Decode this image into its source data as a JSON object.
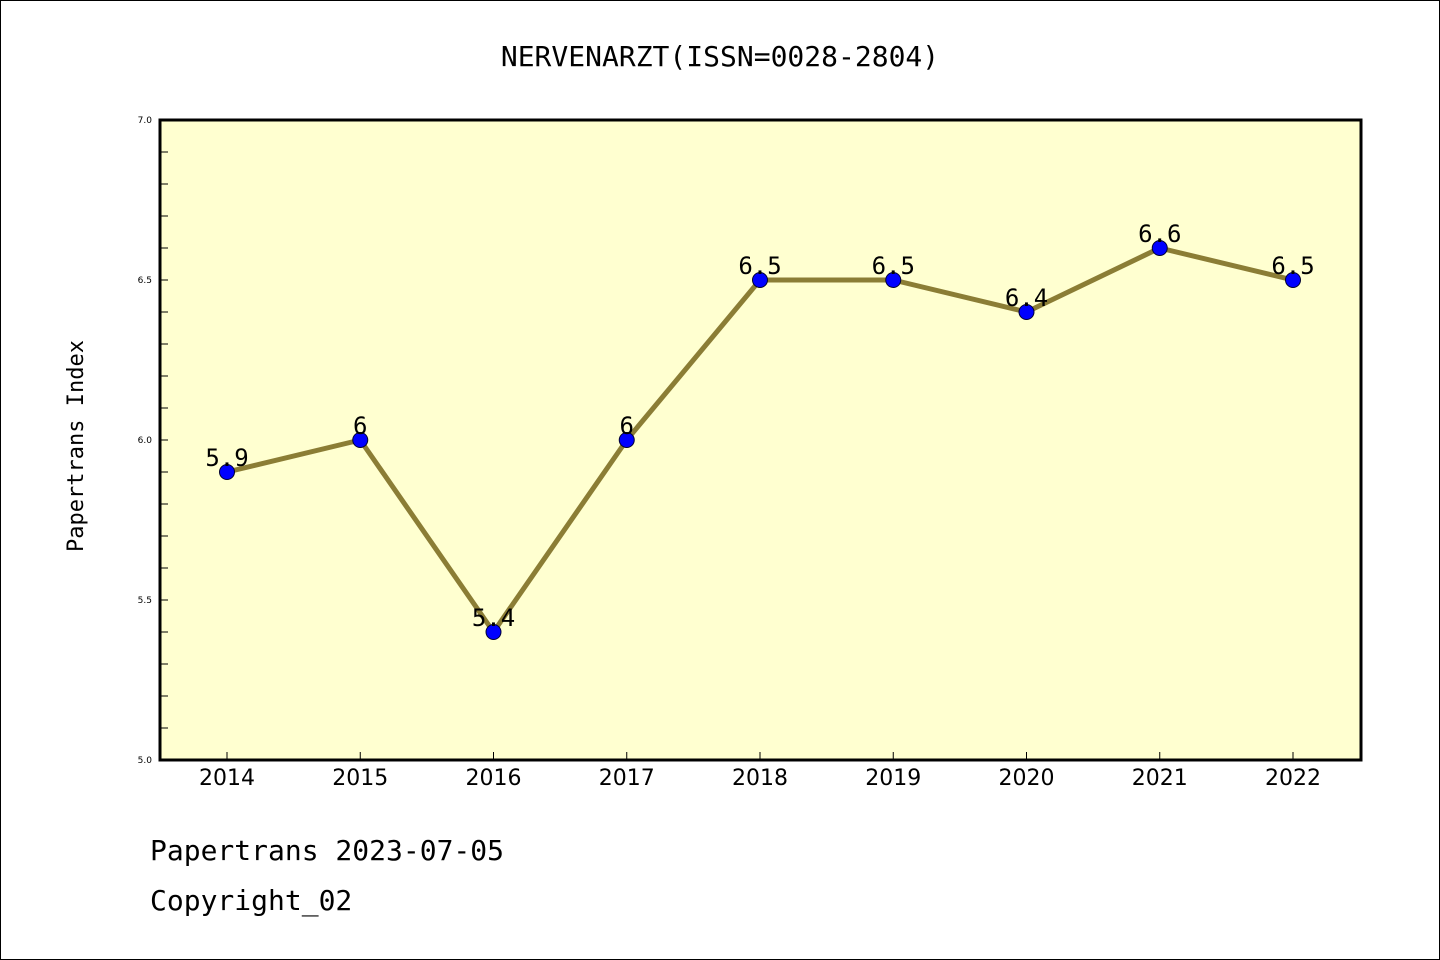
{
  "chart_data": {
    "type": "line",
    "title": "NERVENARZT(ISSN=0028-2804)",
    "xlabel": "",
    "ylabel": "Papertrans Index",
    "categories": [
      "2014",
      "2015",
      "2016",
      "2017",
      "2018",
      "2019",
      "2020",
      "2021",
      "2022"
    ],
    "series": [
      {
        "values": [
          5.9,
          6.0,
          5.4,
          6.0,
          6.5,
          6.5,
          6.4,
          6.6,
          6.5
        ],
        "data_labels": [
          "5.9",
          "6",
          "5.4",
          "6",
          "6.5",
          "6.5",
          "6.4",
          "6.6",
          "6.5"
        ]
      }
    ],
    "ylim": [
      5.0,
      7.0
    ],
    "yticks": [
      "5.0",
      "5.5",
      "6.0",
      "6.5",
      "7.0"
    ],
    "grid": false,
    "colors": {
      "plot_background": "#FFFFD0",
      "line": "#8B7D35",
      "marker": "#0000FF"
    }
  },
  "footer": {
    "date_line": "Papertrans 2023-07-05",
    "copyright_line": "Copyright_02"
  }
}
